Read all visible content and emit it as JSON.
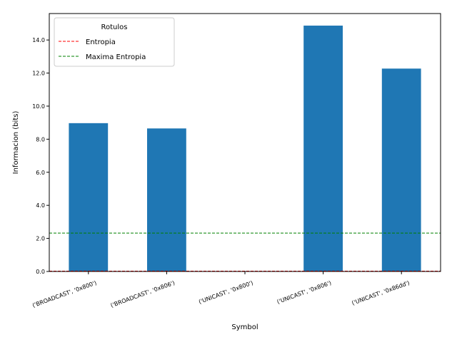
{
  "chart_data": {
    "type": "bar",
    "categories": [
      "('BROADCAST', '0x800')",
      "('BROADCAST', '0x806')",
      "('UNICAST', '0x800')",
      "('UNICAST', '0x806')",
      "('UNICAST', '0x86dd')"
    ],
    "values": [
      8.97,
      8.65,
      0.0,
      14.87,
      12.27
    ],
    "xlabel": "Symbol",
    "ylabel": "Informacion (bits)",
    "ylim": [
      0,
      15.6
    ],
    "yticks": [
      "0.0",
      "2.0",
      "4.0",
      "6.0",
      "8.0",
      "10.0",
      "12.0",
      "14.0"
    ],
    "bar_color": "#1f77b4",
    "grid": false,
    "reference_lines": [
      {
        "name": "Entropia",
        "value": 0.02,
        "color": "#ff0000",
        "style": "dashed"
      },
      {
        "name": "Maxima Entropia",
        "value": 2.32,
        "color": "#008000",
        "style": "dashed"
      }
    ],
    "legend": {
      "title": "Rotulos",
      "placement": "top-left",
      "entries": [
        "Entropia",
        "Maxima Entropia"
      ]
    }
  }
}
